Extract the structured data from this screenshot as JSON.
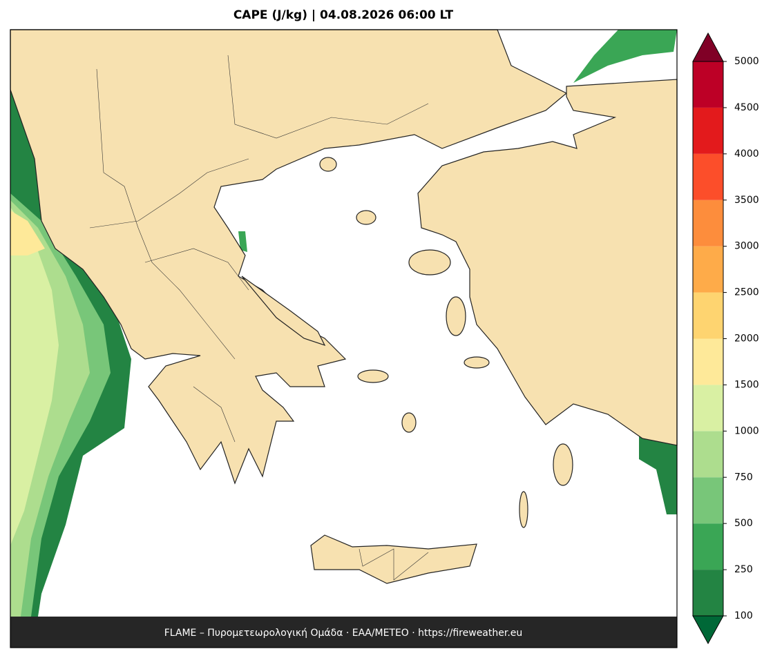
{
  "title": "CAPE (J/kg)  |  04.08.2026 06:00 LT",
  "colorbar": {
    "levels": [
      100,
      250,
      500,
      750,
      1000,
      1500,
      2000,
      2500,
      3000,
      3500,
      4000,
      4500,
      5000
    ],
    "colors": [
      "#238443",
      "#3aa655",
      "#78c679",
      "#addd8e",
      "#d9f0a3",
      "#fee999",
      "#fed470",
      "#feab49",
      "#fd8d3c",
      "#fc4e2a",
      "#e31a1c",
      "#bd0026"
    ],
    "under_color": "#006837",
    "over_color": "#800026"
  },
  "footer": "FLAME – Πυρομετεωρολογική Ομάδα · ΕΑΑ/METEO · https://fireweather.eu"
}
